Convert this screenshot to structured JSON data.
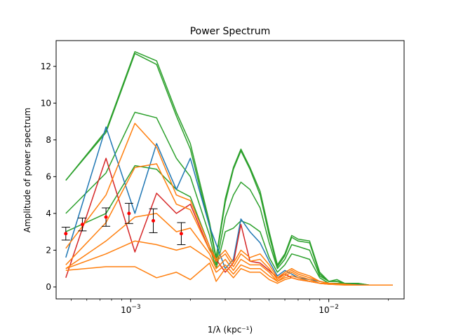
{
  "chart_data": {
    "type": "line",
    "title": "Power Spectrum",
    "xlabel": "1/λ (kpc⁻¹)",
    "ylabel": "Amplitude of power spectrum",
    "x_scale": "log",
    "xlim": [
      0.00042,
      0.024
    ],
    "ylim": [
      -0.65,
      13.4
    ],
    "y_ticks": [
      0,
      2,
      4,
      6,
      8,
      10,
      12
    ],
    "x_major_ticks": [
      {
        "value": 0.001,
        "base": "10",
        "exponent": "−3"
      },
      {
        "value": 0.01,
        "base": "10",
        "exponent": "−2"
      }
    ],
    "x_minor_ticks": [
      0.0005,
      0.0006,
      0.0007,
      0.0008,
      0.0009,
      0.002,
      0.003,
      0.004,
      0.005,
      0.006,
      0.007,
      0.008,
      0.009,
      0.02
    ],
    "grid": false,
    "series": [
      {
        "color": "#2ca02c",
        "x": [
          0.00047,
          0.00075,
          0.00105,
          0.00135,
          0.0017,
          0.002,
          0.0025,
          0.0027,
          0.003,
          0.0033,
          0.0036,
          0.004,
          0.0045,
          0.005,
          0.0055,
          0.006,
          0.0065,
          0.007,
          0.008,
          0.009,
          0.01,
          0.011,
          0.012,
          0.014,
          0.016,
          0.018,
          0.021
        ],
        "y": [
          5.8,
          8.5,
          12.8,
          12.3,
          9.5,
          7.8,
          3.5,
          1.6,
          4.8,
          6.5,
          7.5,
          6.5,
          5.2,
          3.0,
          1.2,
          1.8,
          2.8,
          2.6,
          2.5,
          0.8,
          0.3,
          0.4,
          0.2,
          0.2,
          0.1,
          0.1,
          0.1
        ]
      },
      {
        "color": "#2ca02c",
        "x": [
          0.00047,
          0.00075,
          0.00105,
          0.00135,
          0.0017,
          0.002,
          0.0025,
          0.0027,
          0.003,
          0.0033,
          0.0036,
          0.004,
          0.0045,
          0.005,
          0.0055,
          0.006,
          0.0065,
          0.007,
          0.008,
          0.009,
          0.01,
          0.011,
          0.012,
          0.014,
          0.016,
          0.018,
          0.021
        ],
        "y": [
          5.8,
          8.4,
          12.7,
          12.1,
          9.3,
          7.5,
          3.3,
          1.5,
          4.6,
          6.4,
          7.4,
          6.4,
          5.0,
          2.8,
          1.1,
          1.7,
          2.7,
          2.5,
          2.4,
          0.7,
          0.3,
          0.3,
          0.2,
          0.2,
          0.1,
          0.1,
          0.1
        ]
      },
      {
        "color": "#2ca02c",
        "x": [
          0.00047,
          0.00075,
          0.00105,
          0.00135,
          0.0017,
          0.002,
          0.0025,
          0.0027,
          0.003,
          0.0033,
          0.0036,
          0.004,
          0.0045,
          0.005,
          0.0055,
          0.006,
          0.0065,
          0.007,
          0.008,
          0.009,
          0.01,
          0.011,
          0.012,
          0.014,
          0.016,
          0.018,
          0.021
        ],
        "y": [
          4.0,
          6.2,
          9.5,
          9.2,
          7.0,
          6.0,
          2.8,
          1.2,
          3.8,
          5.0,
          5.7,
          5.3,
          4.3,
          2.4,
          1.0,
          1.5,
          2.3,
          2.2,
          2.0,
          0.6,
          0.3,
          0.3,
          0.2,
          0.15,
          0.1,
          0.1,
          0.1
        ]
      },
      {
        "color": "#2ca02c",
        "x": [
          0.00047,
          0.00075,
          0.00105,
          0.00135,
          0.0017,
          0.002,
          0.0025,
          0.0027,
          0.003,
          0.0033,
          0.0036,
          0.004,
          0.0045,
          0.005,
          0.0055,
          0.006,
          0.0065,
          0.007,
          0.008,
          0.009,
          0.01,
          0.011,
          0.012,
          0.014,
          0.016,
          0.018,
          0.021
        ],
        "y": [
          3.0,
          4.0,
          6.6,
          6.4,
          5.3,
          4.9,
          2.2,
          1.0,
          3.0,
          3.2,
          3.6,
          3.4,
          3.0,
          1.6,
          0.8,
          1.2,
          1.8,
          1.7,
          1.5,
          0.5,
          0.2,
          0.2,
          0.2,
          0.15,
          0.1,
          0.1,
          0.1
        ]
      },
      {
        "color": "#1f77b4",
        "x": [
          0.00047,
          0.00075,
          0.00105,
          0.00135,
          0.0017,
          0.002,
          0.0025,
          0.003,
          0.0033,
          0.0036,
          0.004,
          0.0045,
          0.005,
          0.0055,
          0.006,
          0.0065,
          0.007,
          0.008,
          0.009,
          0.01,
          0.012,
          0.014,
          0.016,
          0.018,
          0.021
        ],
        "y": [
          1.6,
          8.7,
          4.0,
          7.8,
          5.3,
          7.0,
          3.3,
          1.0,
          1.5,
          3.7,
          3.0,
          2.4,
          1.4,
          0.6,
          0.9,
          0.7,
          0.5,
          0.4,
          0.3,
          0.2,
          0.15,
          0.12,
          0.1,
          0.1,
          0.1
        ]
      },
      {
        "color": "#d62728",
        "x": [
          0.00047,
          0.00075,
          0.00105,
          0.00135,
          0.0017,
          0.002,
          0.0025,
          0.003,
          0.0033,
          0.0036,
          0.004,
          0.0045,
          0.005,
          0.0055,
          0.006,
          0.0065,
          0.007,
          0.008,
          0.009,
          0.01,
          0.012,
          0.014,
          0.016,
          0.018,
          0.021
        ],
        "y": [
          0.5,
          7.0,
          1.9,
          5.1,
          4.0,
          4.5,
          2.0,
          0.8,
          1.3,
          3.4,
          1.4,
          1.3,
          0.9,
          0.5,
          0.7,
          0.5,
          0.4,
          0.3,
          0.2,
          0.15,
          0.12,
          0.1,
          0.1,
          0.1,
          0.1
        ]
      },
      {
        "color": "#ff7f0e",
        "x": [
          0.00047,
          0.00075,
          0.00105,
          0.00135,
          0.0017,
          0.002,
          0.0025,
          0.0027,
          0.003,
          0.0033,
          0.0036,
          0.004,
          0.0045,
          0.005,
          0.0055,
          0.006,
          0.0065,
          0.007,
          0.008,
          0.009,
          0.01,
          0.012,
          0.014,
          0.016,
          0.018,
          0.021
        ],
        "y": [
          2.1,
          5.0,
          8.9,
          7.6,
          5.0,
          4.7,
          2.2,
          1.5,
          2.0,
          1.3,
          2.0,
          1.6,
          1.8,
          1.2,
          0.5,
          0.8,
          1.0,
          0.8,
          0.6,
          0.3,
          0.2,
          0.15,
          0.1,
          0.1,
          0.1,
          0.1
        ]
      },
      {
        "color": "#ff7f0e",
        "x": [
          0.00047,
          0.00075,
          0.00105,
          0.00135,
          0.0017,
          0.002,
          0.0025,
          0.0027,
          0.003,
          0.0033,
          0.0036,
          0.004,
          0.0045,
          0.005,
          0.0055,
          0.006,
          0.0065,
          0.007,
          0.008,
          0.009,
          0.01,
          0.012,
          0.014,
          0.016,
          0.018,
          0.021
        ],
        "y": [
          1.2,
          3.5,
          6.5,
          6.7,
          4.5,
          4.2,
          2.0,
          1.4,
          1.8,
          1.1,
          1.8,
          1.4,
          1.5,
          1.0,
          0.4,
          0.7,
          0.9,
          0.7,
          0.5,
          0.3,
          0.2,
          0.15,
          0.1,
          0.1,
          0.1,
          0.1
        ]
      },
      {
        "color": "#ff7f0e",
        "x": [
          0.00047,
          0.00075,
          0.00105,
          0.00135,
          0.0017,
          0.002,
          0.0025,
          0.0027,
          0.003,
          0.0033,
          0.0036,
          0.004,
          0.0045,
          0.005,
          0.0055,
          0.006,
          0.0065,
          0.007,
          0.008,
          0.009,
          0.01,
          0.012,
          0.014,
          0.016,
          0.018,
          0.021
        ],
        "y": [
          1.0,
          2.5,
          3.8,
          4.0,
          3.0,
          3.2,
          1.8,
          1.0,
          1.5,
          0.9,
          1.5,
          1.2,
          1.2,
          0.8,
          0.3,
          0.6,
          0.8,
          0.6,
          0.4,
          0.2,
          0.2,
          0.12,
          0.1,
          0.1,
          0.1,
          0.1
        ]
      },
      {
        "color": "#ff7f0e",
        "x": [
          0.00047,
          0.00075,
          0.00105,
          0.00135,
          0.0017,
          0.002,
          0.0025,
          0.0027,
          0.003,
          0.0033,
          0.0036,
          0.004,
          0.0045,
          0.005,
          0.0055,
          0.006,
          0.0065,
          0.007,
          0.008,
          0.009,
          0.01,
          0.012,
          0.014,
          0.016,
          0.018,
          0.021
        ],
        "y": [
          1.0,
          1.8,
          2.5,
          2.3,
          2.0,
          2.2,
          1.5,
          0.8,
          1.2,
          0.7,
          1.2,
          1.0,
          1.0,
          0.6,
          0.3,
          0.5,
          0.6,
          0.5,
          0.3,
          0.2,
          0.15,
          0.12,
          0.1,
          0.1,
          0.1,
          0.1
        ]
      },
      {
        "color": "#ff7f0e",
        "x": [
          0.00047,
          0.00075,
          0.00105,
          0.00135,
          0.0017,
          0.002,
          0.0025,
          0.0027,
          0.003,
          0.0033,
          0.0036,
          0.004,
          0.0045,
          0.005,
          0.0055,
          0.006,
          0.0065,
          0.007,
          0.008,
          0.009,
          0.01,
          0.012,
          0.014,
          0.016,
          0.018,
          0.021
        ],
        "y": [
          0.9,
          1.1,
          1.1,
          0.5,
          0.8,
          0.4,
          1.3,
          0.3,
          1.0,
          0.5,
          1.0,
          0.8,
          0.8,
          0.4,
          0.2,
          0.4,
          0.5,
          0.4,
          0.3,
          0.2,
          0.15,
          0.1,
          0.1,
          0.1,
          0.1,
          0.1
        ]
      }
    ],
    "errorbar_series": {
      "color": "#ff0000",
      "x": [
        0.00047,
        0.00057,
        0.00075,
        0.00098,
        0.0013,
        0.0018
      ],
      "y": [
        2.9,
        3.4,
        3.8,
        4.0,
        3.6,
        2.9
      ],
      "yerr": [
        0.35,
        0.35,
        0.5,
        0.55,
        0.65,
        0.6
      ]
    }
  }
}
